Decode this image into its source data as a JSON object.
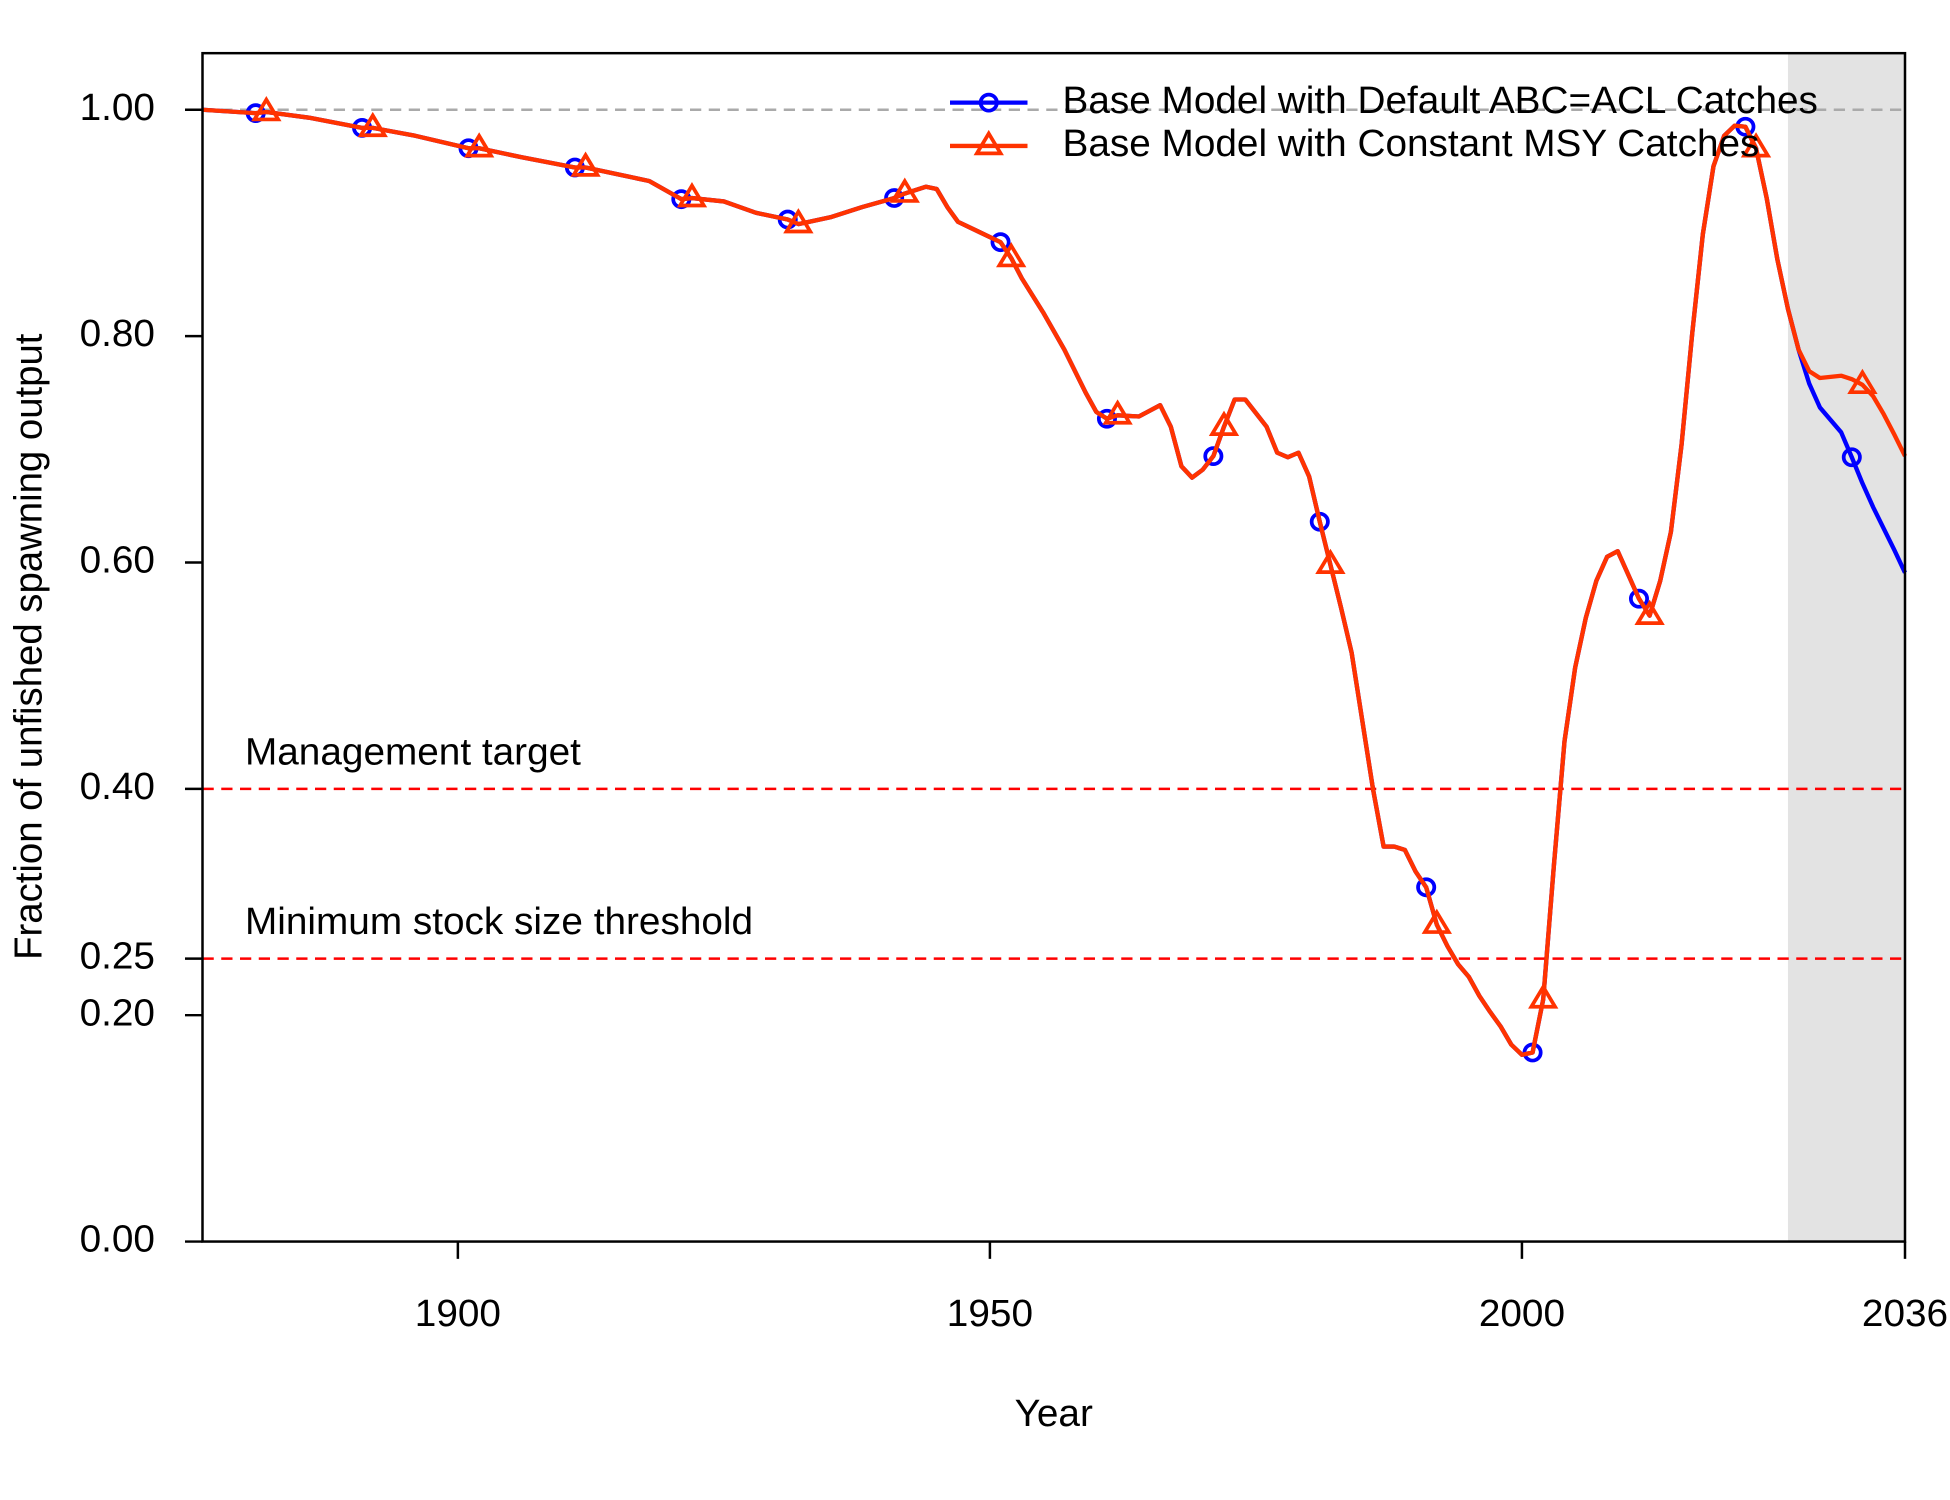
{
  "chart_data": {
    "type": "line",
    "xlabel": "Year",
    "ylabel": "Fraction of unfished spawning output",
    "xlim": [
      1876,
      2036
    ],
    "ylim": [
      0,
      1.05
    ],
    "xticks": [
      1900,
      1950,
      2000,
      2036
    ],
    "yticks": [
      {
        "value": 0,
        "label": "0.00"
      },
      {
        "value": 0.2,
        "label": "0.20"
      },
      {
        "value": 0.25,
        "label": "0.25"
      },
      {
        "value": 0.4,
        "label": "0.40"
      },
      {
        "value": 0.6,
        "label": "0.60"
      },
      {
        "value": 0.8,
        "label": "0.80"
      },
      {
        "value": 1,
        "label": "1.00"
      }
    ],
    "unfished_line": 1,
    "forecast_span": [
      2025,
      2036
    ],
    "reference_lines": [
      {
        "value": 0.4,
        "label": "Management target",
        "color": "#ff0000"
      },
      {
        "value": 0.25,
        "label": "Minimum stock size threshold",
        "color": "#ff0000"
      }
    ],
    "x": [
      1876,
      1881,
      1882,
      1886,
      1891,
      1892,
      1896,
      1901,
      1902,
      1906,
      1911,
      1912,
      1916,
      1918,
      1921,
      1922,
      1925,
      1928,
      1931,
      1932,
      1935,
      1938,
      1941,
      1942,
      1944,
      1945,
      1946,
      1947,
      1949,
      1951,
      1952,
      1953,
      1955,
      1957,
      1959,
      1960,
      1961,
      1962,
      1964,
      1966,
      1967,
      1968,
      1969,
      1970,
      1971,
      1972,
      1973,
      1974,
      1976,
      1977,
      1978,
      1979,
      1980,
      1981,
      1982,
      1983,
      1984,
      1985,
      1986,
      1987,
      1988,
      1989,
      1990,
      1991,
      1992,
      1993,
      1994,
      1995,
      1996,
      1997,
      1998,
      1999,
      2000,
      2001,
      2002,
      2003,
      2004,
      2005,
      2006,
      2007,
      2008,
      2009,
      2010,
      2011,
      2012,
      2013,
      2014,
      2015,
      2016,
      2017,
      2018,
      2019,
      2020,
      2021,
      2022,
      2023,
      2024,
      2025,
      2026,
      2027,
      2028,
      2030,
      2031,
      2032,
      2033,
      2034,
      2035,
      2036
    ],
    "series": [
      {
        "name": "Base Model with Default ABC=ACL Catches",
        "color": "#0000ff",
        "marker": "circle",
        "values": [
          1.0,
          0.997,
          0.998,
          0.993,
          0.984,
          0.984,
          0.977,
          0.966,
          0.966,
          0.958,
          0.949,
          0.949,
          0.941,
          0.937,
          0.921,
          0.922,
          0.919,
          0.909,
          0.903,
          0.899,
          0.905,
          0.914,
          0.922,
          0.926,
          0.932,
          0.93,
          0.914,
          0.901,
          0.892,
          0.883,
          0.869,
          0.851,
          0.821,
          0.788,
          0.75,
          0.733,
          0.727,
          0.73,
          0.729,
          0.739,
          0.72,
          0.685,
          0.675,
          0.682,
          0.694,
          0.72,
          0.744,
          0.744,
          0.72,
          0.697,
          0.693,
          0.697,
          0.676,
          0.636,
          0.598,
          0.56,
          0.52,
          0.46,
          0.4,
          0.349,
          0.349,
          0.346,
          0.327,
          0.313,
          0.28,
          0.261,
          0.245,
          0.234,
          0.217,
          0.203,
          0.19,
          0.174,
          0.165,
          0.167,
          0.214,
          0.332,
          0.442,
          0.507,
          0.551,
          0.584,
          0.605,
          0.61,
          0.589,
          0.568,
          0.553,
          0.584,
          0.627,
          0.704,
          0.802,
          0.89,
          0.95,
          0.977,
          0.986,
          0.985,
          0.966,
          0.922,
          0.868,
          0.824,
          0.788,
          0.758,
          0.737,
          0.715,
          0.693,
          0.67,
          0.649,
          0.63,
          0.611,
          0.591
        ]
      },
      {
        "name": "Base Model with Constant MSY Catches",
        "color": "#ff3300",
        "marker": "triangle",
        "values": [
          1.0,
          0.997,
          0.998,
          0.993,
          0.984,
          0.984,
          0.977,
          0.966,
          0.966,
          0.958,
          0.949,
          0.949,
          0.941,
          0.937,
          0.921,
          0.922,
          0.919,
          0.909,
          0.903,
          0.899,
          0.905,
          0.914,
          0.922,
          0.926,
          0.932,
          0.93,
          0.914,
          0.901,
          0.892,
          0.883,
          0.869,
          0.851,
          0.821,
          0.788,
          0.75,
          0.733,
          0.727,
          0.73,
          0.729,
          0.739,
          0.72,
          0.685,
          0.675,
          0.682,
          0.694,
          0.72,
          0.744,
          0.744,
          0.72,
          0.697,
          0.693,
          0.697,
          0.676,
          0.636,
          0.598,
          0.56,
          0.52,
          0.46,
          0.4,
          0.349,
          0.349,
          0.346,
          0.327,
          0.313,
          0.28,
          0.261,
          0.245,
          0.234,
          0.217,
          0.203,
          0.19,
          0.174,
          0.165,
          0.167,
          0.214,
          0.332,
          0.442,
          0.507,
          0.551,
          0.584,
          0.605,
          0.61,
          0.589,
          0.568,
          0.553,
          0.584,
          0.627,
          0.704,
          0.802,
          0.89,
          0.95,
          0.977,
          0.986,
          0.985,
          0.966,
          0.922,
          0.868,
          0.824,
          0.788,
          0.769,
          0.763,
          0.765,
          0.762,
          0.757,
          0.747,
          0.731,
          0.713,
          0.694
        ]
      }
    ]
  }
}
